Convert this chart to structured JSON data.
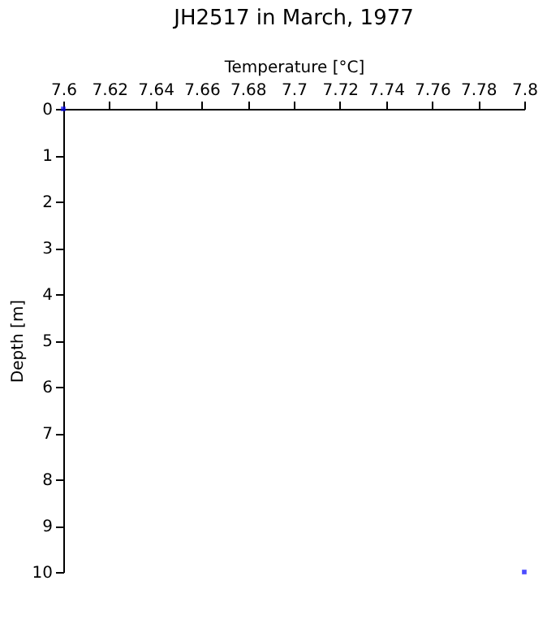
{
  "chart_data": {
    "type": "scatter",
    "title": "JH2517 in March, 1977",
    "xlabel": "Temperature [°C]",
    "ylabel": "Depth [m]",
    "x": [
      7.6,
      7.8
    ],
    "series": [
      {
        "color": "#0000ff",
        "values": [
          0,
          10
        ]
      }
    ],
    "xlim": [
      7.6,
      7.8
    ],
    "xticks": [
      7.6,
      7.62,
      7.64,
      7.66,
      7.68,
      7.7,
      7.72,
      7.74,
      7.76,
      7.78,
      7.8
    ],
    "ylim": [
      10,
      0
    ],
    "yticks": [
      0,
      1,
      2,
      3,
      4,
      5,
      6,
      7,
      8,
      9,
      10
    ],
    "marker": "square",
    "grid": false,
    "legend": false
  }
}
